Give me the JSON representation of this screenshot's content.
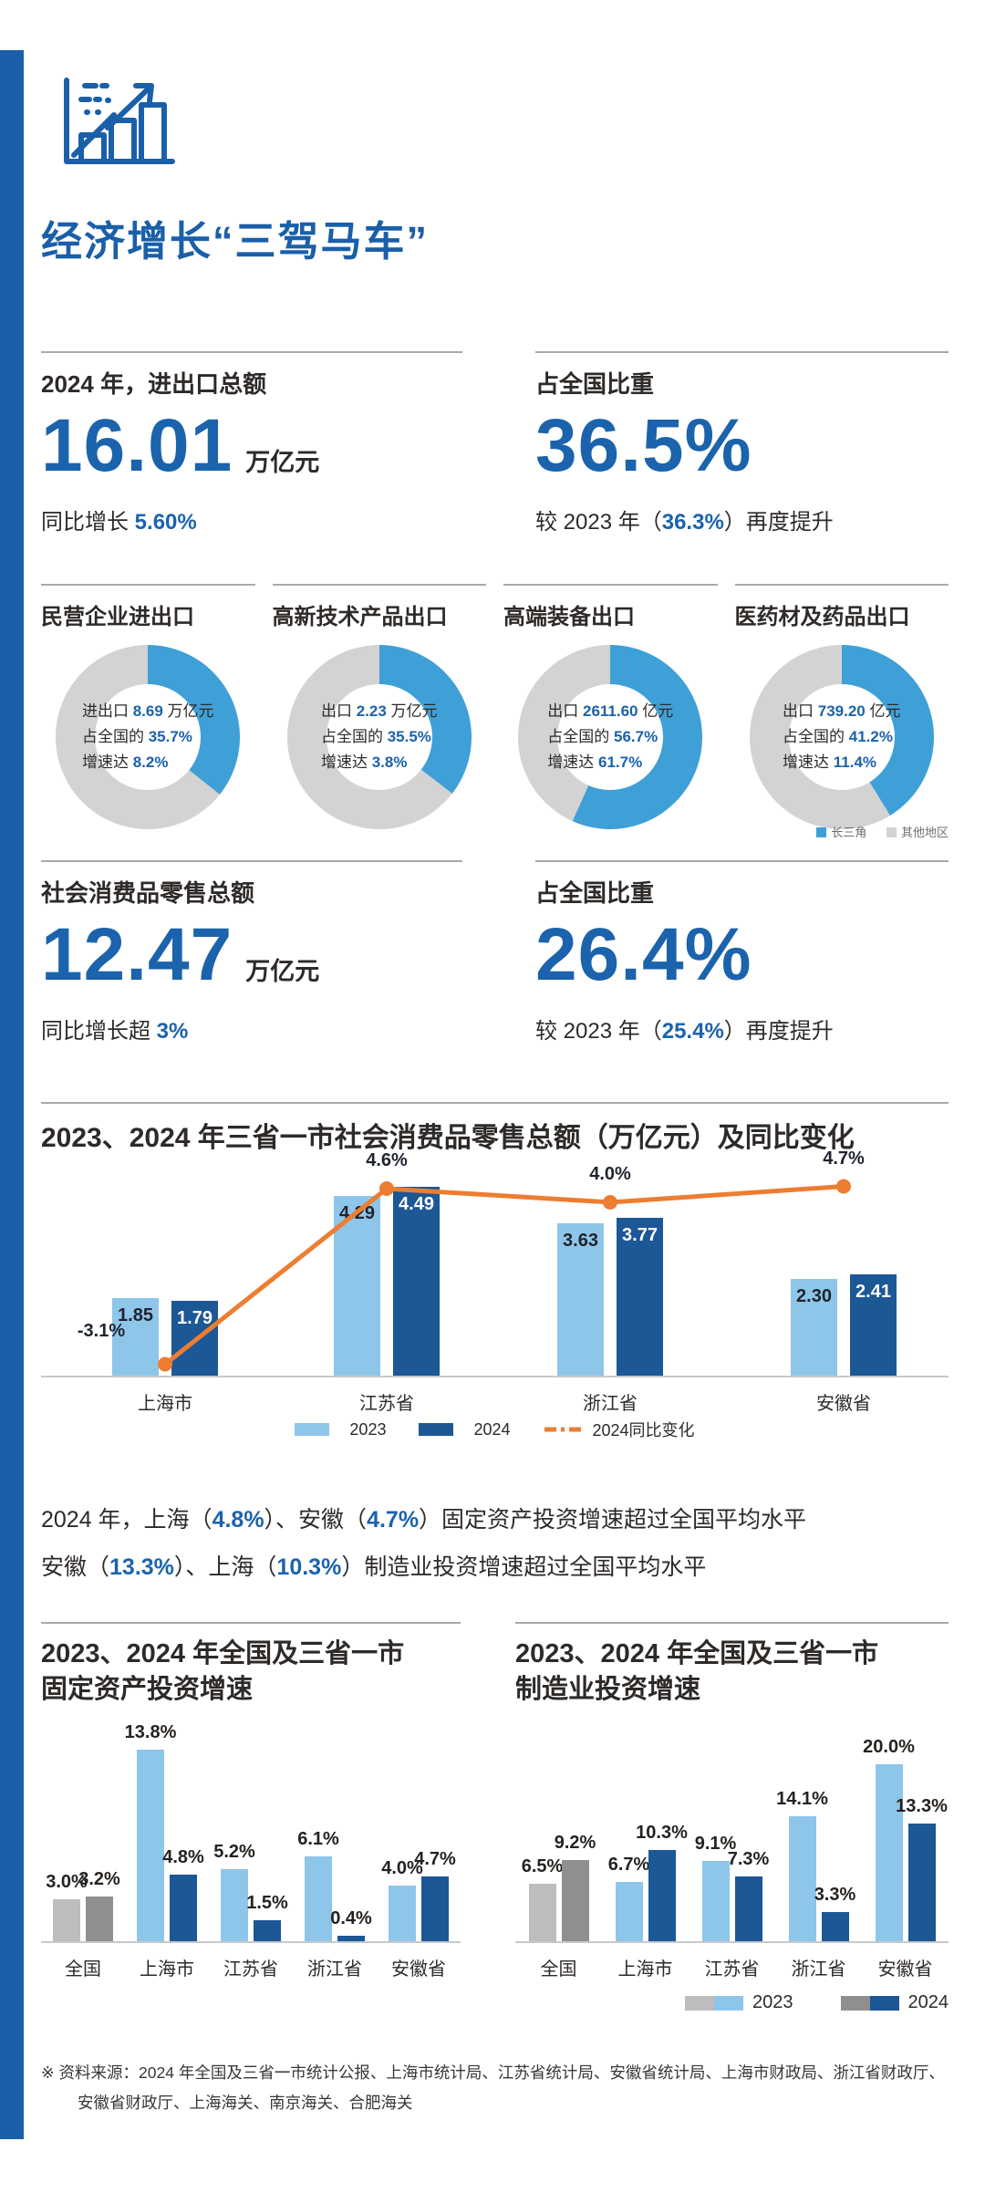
{
  "page": {
    "title": "经济增长“三驾马车”",
    "source_line1": "※ 资料来源：2024 年全国及三省一市统计公报、上海市统计局、江苏省统计局、安徽省统计局、上海市财政局、浙江省财政厅、",
    "source_line2": "安徽省财政厅、上海海关、南京海关、合肥海关"
  },
  "colors": {
    "primary": "#1A5FA9",
    "num_blue": "#1B63AC",
    "donut_blue": "#3FA0D8",
    "donut_gray": "#D3D3D4",
    "bar_light_blue": "#8EC6EA",
    "bar_dark_blue": "#1C5796",
    "orange": "#ED7D31",
    "gray_2023": "#BDBDBD",
    "gray_2024": "#8F8F8F",
    "text_dark": "#2E2A28"
  },
  "stats_row1": {
    "left": {
      "label": "2024 年，进出口总额",
      "value": "16.01",
      "unit": "万亿元",
      "sub_prefix": "同比增长 ",
      "sub_value": "5.60%",
      "sub_suffix": ""
    },
    "right": {
      "label": "占全国比重",
      "value": "36.5%",
      "unit": "",
      "sub_prefix": "较 2023 年（",
      "sub_value": "36.3%",
      "sub_suffix": "）再度提升"
    }
  },
  "stats_row2": {
    "left": {
      "label": "社会消费品零售总额",
      "value": "12.47",
      "unit": "万亿元",
      "sub_prefix": "同比增长超 ",
      "sub_value": "3%",
      "sub_suffix": ""
    },
    "right": {
      "label": "占全国比重",
      "value": "26.4%",
      "unit": "",
      "sub_prefix": "较 2023 年（",
      "sub_value": "25.4%",
      "sub_suffix": "）再度提升"
    }
  },
  "donuts": {
    "legend": [
      {
        "label": "长三角",
        "color": "#3FA0D8"
      },
      {
        "label": "其他地区",
        "color": "#D3D3D4"
      }
    ],
    "items": [
      {
        "title": "民营企业进出口",
        "pct": 35.7,
        "lines": [
          {
            "pre": "进出口 ",
            "val": "8.69",
            "suf": " 万亿元"
          },
          {
            "pre": "占全国的 ",
            "val": "35.7%",
            "suf": ""
          },
          {
            "pre": "增速达 ",
            "val": "8.2%",
            "suf": ""
          }
        ]
      },
      {
        "title": "高新技术产品出口",
        "pct": 35.5,
        "lines": [
          {
            "pre": "出口 ",
            "val": "2.23",
            "suf": " 万亿元"
          },
          {
            "pre": "占全国的 ",
            "val": "35.5%",
            "suf": ""
          },
          {
            "pre": "增速达 ",
            "val": "3.8%",
            "suf": ""
          }
        ]
      },
      {
        "title": "高端装备出口",
        "pct": 56.7,
        "lines": [
          {
            "pre": "出口 ",
            "val": "2611.60",
            "suf": " 亿元"
          },
          {
            "pre": "占全国的 ",
            "val": "56.7%",
            "suf": ""
          },
          {
            "pre": "增速达 ",
            "val": "61.7%",
            "suf": ""
          }
        ]
      },
      {
        "title": "医药材及药品出口",
        "pct": 41.2,
        "lines": [
          {
            "pre": "出口 ",
            "val": "739.20",
            "suf": " 亿元"
          },
          {
            "pre": "占全国的 ",
            "val": "41.2%",
            "suf": ""
          },
          {
            "pre": "增速达 ",
            "val": "11.4%",
            "suf": ""
          }
        ]
      }
    ]
  },
  "paragraph": {
    "line1": [
      {
        "t": "2024 年，上海（"
      },
      {
        "t": "4.8%",
        "b": 1
      },
      {
        "t": "）、安徽（"
      },
      {
        "t": "4.7%",
        "b": 1
      },
      {
        "t": "）固定资产投资增速超过全国平均水平"
      }
    ],
    "line2": [
      {
        "t": "安徽（"
      },
      {
        "t": "13.3%",
        "b": 1
      },
      {
        "t": "）、上海（"
      },
      {
        "t": "10.3%",
        "b": 1
      },
      {
        "t": "）制造业投资增速超过全国平均水平"
      }
    ]
  },
  "chart_data": [
    {
      "type": "bar+line",
      "title": "2023、2024 年三省一市社会消费品零售总额（万亿元）及同比变化",
      "categories": [
        "上海市",
        "江苏省",
        "浙江省",
        "安徽省"
      ],
      "series": [
        {
          "name": "2023",
          "values": [
            1.85,
            4.29,
            3.63,
            2.3
          ],
          "labels": [
            "1.85",
            "4.29",
            "3.63",
            "2.30"
          ]
        },
        {
          "name": "2024",
          "values": [
            1.79,
            4.49,
            3.77,
            2.41
          ],
          "labels": [
            "1.79",
            "4.49",
            "3.77",
            "2.41"
          ]
        }
      ],
      "line_series": {
        "name": "2024同比变化",
        "values": [
          -3.1,
          4.6,
          4.0,
          4.7
        ],
        "labels": [
          "-3.1%",
          "4.6%",
          "4.0%",
          "4.7%"
        ]
      },
      "ylim": [
        0,
        5
      ],
      "legend_position": "bottom-center",
      "grid": false
    },
    {
      "type": "bar",
      "title_line1": "2023、2024 年全国及三省一市",
      "title_line2": "固定资产投资增速",
      "categories": [
        "全国",
        "上海市",
        "江苏省",
        "浙江省",
        "安徽省"
      ],
      "series": [
        {
          "name": "2023",
          "values": [
            3.0,
            13.8,
            5.2,
            6.1,
            4.0
          ],
          "labels": [
            "3.0%",
            "13.8%",
            "5.2%",
            "6.1%",
            "4.0%"
          ]
        },
        {
          "name": "2024",
          "values": [
            3.2,
            4.8,
            1.5,
            0.4,
            4.7
          ],
          "labels": [
            "3.2%",
            "4.8%",
            "1.5%",
            "0.4%",
            "4.7%"
          ]
        }
      ],
      "ylim": [
        0,
        15
      ],
      "grid": false
    },
    {
      "type": "bar",
      "title_line1": "2023、2024 年全国及三省一市",
      "title_line2": "制造业投资增速",
      "categories": [
        "全国",
        "上海市",
        "江苏省",
        "浙江省",
        "安徽省"
      ],
      "series": [
        {
          "name": "2023",
          "values": [
            6.5,
            6.7,
            9.1,
            14.1,
            20.0
          ],
          "labels": [
            "6.5%",
            "6.7%",
            "9.1%",
            "14.1%",
            "20.0%"
          ]
        },
        {
          "name": "2024",
          "values": [
            9.2,
            10.3,
            7.3,
            3.3,
            13.3
          ],
          "labels": [
            "9.2%",
            "10.3%",
            "7.3%",
            "3.3%",
            "13.3%"
          ]
        }
      ],
      "ylim": [
        0,
        21
      ],
      "grid": false
    }
  ],
  "bottom_legend": [
    {
      "label": "2023"
    },
    {
      "label": "2024"
    }
  ]
}
